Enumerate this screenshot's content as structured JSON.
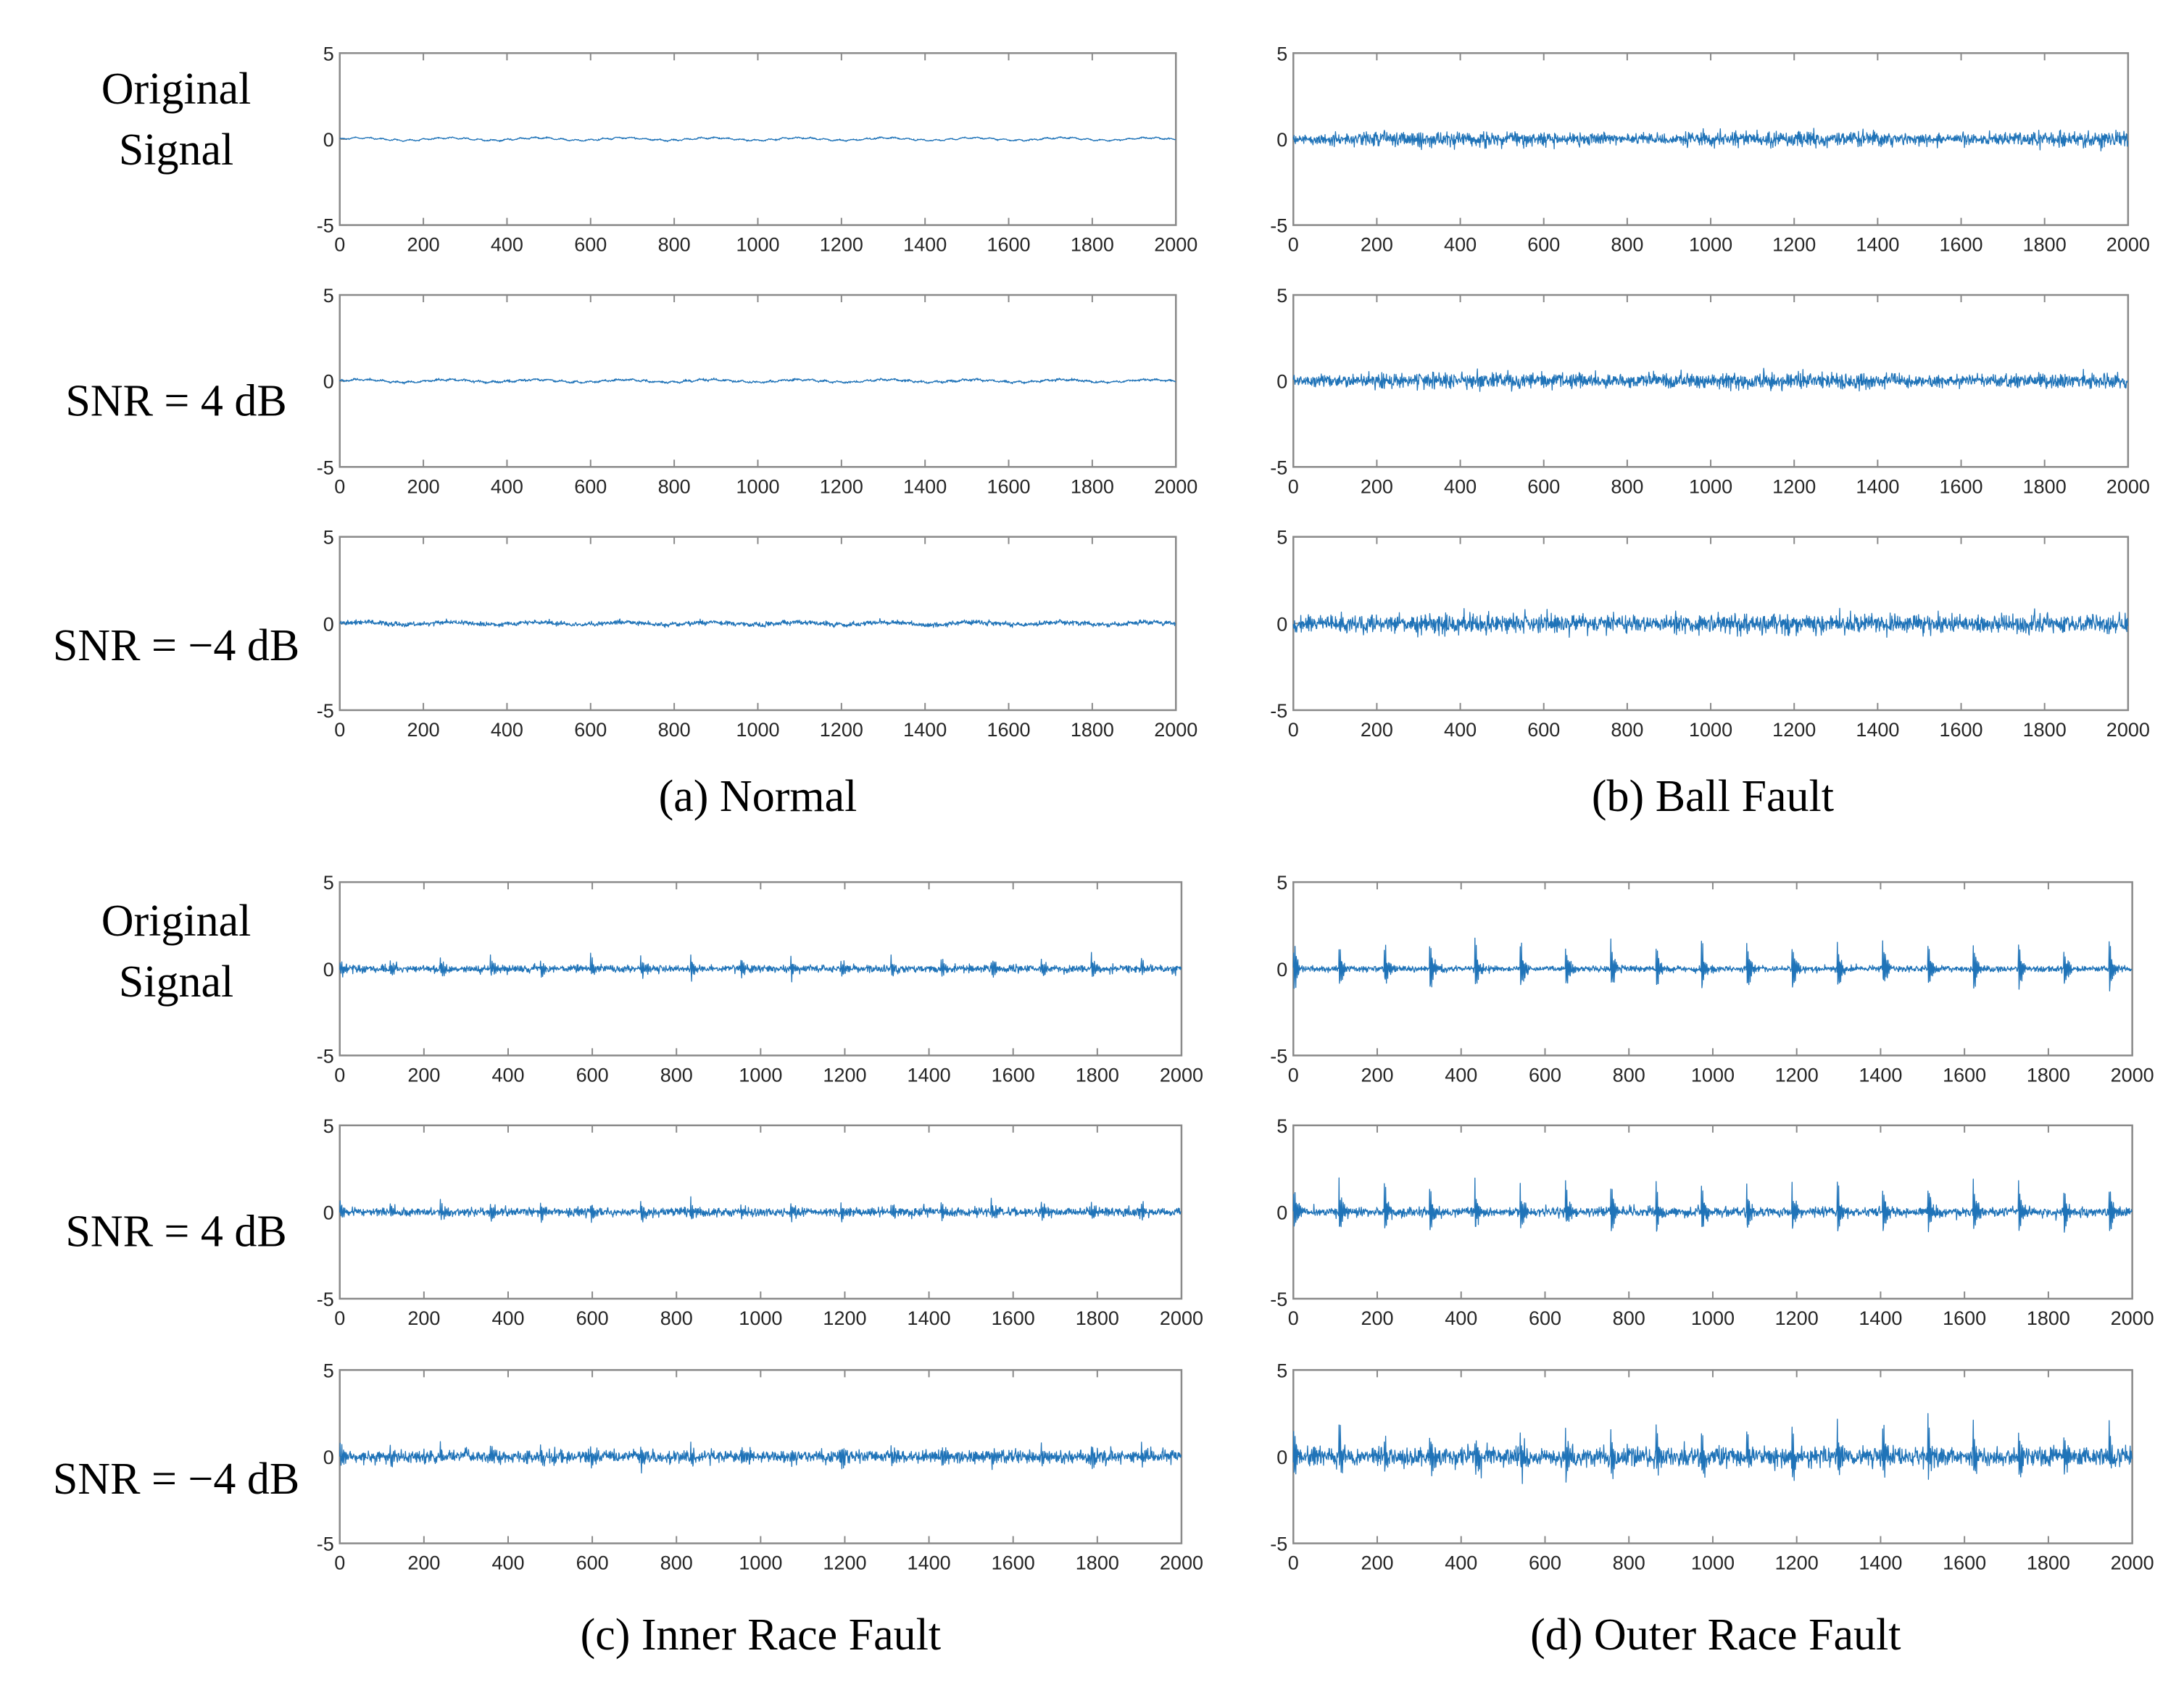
{
  "chart_data": [
    {
      "type": "line",
      "panel": "a",
      "caption": "(a) Normal",
      "row_labels": [
        "Original\nSignal",
        "SNR = 4 dB",
        "SNR = −4 dB"
      ],
      "x_ticks": [
        0,
        200,
        400,
        600,
        800,
        1000,
        1200,
        1400,
        1600,
        1800,
        2000
      ],
      "y_ticks": [
        5,
        0,
        -5
      ],
      "xlim": [
        0,
        2000
      ],
      "ylim": [
        -5,
        5
      ],
      "series": [
        {
          "name": "Original Signal",
          "fault": "normal",
          "amplitude": 0.12,
          "snr_db": null
        },
        {
          "name": "SNR = 4 dB",
          "fault": "normal",
          "amplitude": 0.12,
          "snr_db": 4
        },
        {
          "name": "SNR = −4 dB",
          "fault": "normal",
          "amplitude": 0.12,
          "snr_db": -4
        }
      ]
    },
    {
      "type": "line",
      "panel": "b",
      "caption": "(b) Ball Fault",
      "row_labels": [],
      "x_ticks": [
        0,
        200,
        400,
        600,
        800,
        1000,
        1200,
        1400,
        1600,
        1800,
        2000
      ],
      "y_ticks": [
        5,
        0,
        -5
      ],
      "xlim": [
        0,
        2000
      ],
      "ylim": [
        -5,
        5
      ],
      "series": [
        {
          "name": "Original Signal",
          "fault": "ball",
          "amplitude": 0.3,
          "snr_db": null
        },
        {
          "name": "SNR = 4 dB",
          "fault": "ball",
          "amplitude": 0.3,
          "snr_db": 4
        },
        {
          "name": "SNR = −4 dB",
          "fault": "ball",
          "amplitude": 0.3,
          "snr_db": -4
        }
      ]
    },
    {
      "type": "line",
      "panel": "c",
      "caption": "(c) Inner Race Fault",
      "row_labels": [
        "Original\nSignal",
        "SNR = 4 dB",
        "SNR = −4 dB"
      ],
      "x_ticks": [
        0,
        200,
        400,
        600,
        800,
        1000,
        1200,
        1400,
        1600,
        1800,
        2000
      ],
      "y_ticks": [
        5,
        0,
        -5
      ],
      "xlim": [
        0,
        2000
      ],
      "ylim": [
        -5,
        5
      ],
      "series": [
        {
          "name": "Original Signal",
          "fault": "inner",
          "amplitude": 0.5,
          "snr_db": null
        },
        {
          "name": "SNR = 4 dB",
          "fault": "inner",
          "amplitude": 0.5,
          "snr_db": 4
        },
        {
          "name": "SNR = −4 dB",
          "fault": "inner",
          "amplitude": 0.5,
          "snr_db": -4
        }
      ]
    },
    {
      "type": "line",
      "panel": "d",
      "caption": "(d) Outer Race Fault",
      "row_labels": [],
      "x_ticks": [
        0,
        200,
        400,
        600,
        800,
        1000,
        1200,
        1400,
        1600,
        1800,
        2000
      ],
      "y_ticks": [
        5,
        0,
        -5
      ],
      "xlim": [
        0,
        2000
      ],
      "ylim": [
        -5,
        5
      ],
      "series": [
        {
          "name": "Original Signal",
          "fault": "outer",
          "amplitude": 2.0,
          "snr_db": null
        },
        {
          "name": "SNR = 4 dB",
          "fault": "outer",
          "amplitude": 2.0,
          "snr_db": 4
        },
        {
          "name": "SNR = −4 dB",
          "fault": "outer",
          "amplitude": 2.0,
          "snr_db": -4
        }
      ]
    }
  ],
  "colors": {
    "signal": "#1f73b8",
    "axis": "#8a8a8a"
  }
}
